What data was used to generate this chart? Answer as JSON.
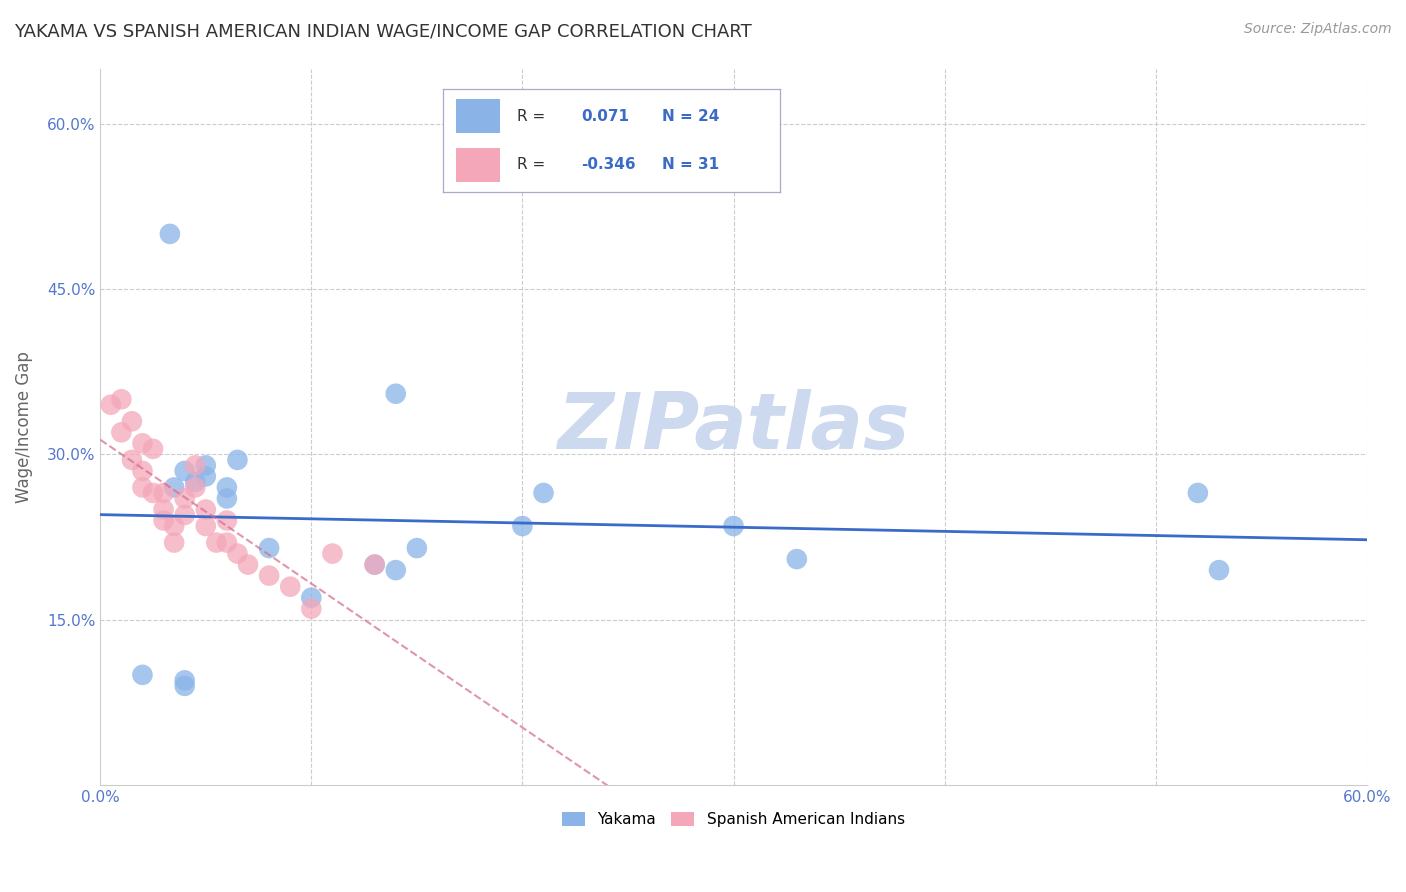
{
  "title": "YAKAMA VS SPANISH AMERICAN INDIAN WAGE/INCOME GAP CORRELATION CHART",
  "source": "Source: ZipAtlas.com",
  "ylabel": "Wage/Income Gap",
  "xlim": [
    0.0,
    0.6
  ],
  "ylim": [
    0.0,
    0.65
  ],
  "yticks": [
    0.15,
    0.3,
    0.45,
    0.6
  ],
  "ytick_labels": [
    "15.0%",
    "30.0%",
    "45.0%",
    "60.0%"
  ],
  "xticks": [
    0.0,
    0.1,
    0.2,
    0.3,
    0.4,
    0.5,
    0.6
  ],
  "xtick_labels": [
    "0.0%",
    "",
    "",
    "",
    "",
    "",
    "60.0%"
  ],
  "yakama_R": 0.071,
  "yakama_N": 24,
  "spanish_R": -0.346,
  "spanish_N": 31,
  "blue_color": "#8ab4e8",
  "pink_color": "#f4a7b9",
  "blue_line_color": "#3a6bc8",
  "pink_line_color": "#d4698a",
  "watermark_color": "#ccd9ee",
  "background_color": "#ffffff",
  "grid_color": "#cccccc",
  "legend_border_color": "#aaaacc",
  "title_color": "#333333",
  "axis_label_color": "#5577cc",
  "yakama_x": [
    0.02,
    0.04,
    0.04,
    0.045,
    0.05,
    0.05,
    0.06,
    0.06,
    0.065,
    0.08,
    0.1,
    0.13,
    0.14,
    0.15,
    0.2,
    0.21,
    0.3,
    0.33,
    0.52,
    0.53,
    0.14,
    0.04,
    0.035,
    0.033
  ],
  "yakama_y": [
    0.1,
    0.095,
    0.09,
    0.275,
    0.28,
    0.29,
    0.27,
    0.26,
    0.295,
    0.215,
    0.17,
    0.2,
    0.195,
    0.215,
    0.235,
    0.265,
    0.235,
    0.205,
    0.265,
    0.195,
    0.355,
    0.285,
    0.27,
    0.5
  ],
  "spanish_x": [
    0.005,
    0.01,
    0.01,
    0.015,
    0.015,
    0.02,
    0.02,
    0.02,
    0.025,
    0.025,
    0.03,
    0.03,
    0.03,
    0.035,
    0.035,
    0.04,
    0.04,
    0.045,
    0.045,
    0.05,
    0.05,
    0.055,
    0.06,
    0.06,
    0.065,
    0.07,
    0.08,
    0.09,
    0.1,
    0.11,
    0.13
  ],
  "spanish_y": [
    0.345,
    0.35,
    0.32,
    0.33,
    0.295,
    0.31,
    0.285,
    0.27,
    0.305,
    0.265,
    0.265,
    0.25,
    0.24,
    0.235,
    0.22,
    0.26,
    0.245,
    0.29,
    0.27,
    0.25,
    0.235,
    0.22,
    0.24,
    0.22,
    0.21,
    0.2,
    0.19,
    0.18,
    0.16,
    0.21,
    0.2
  ]
}
